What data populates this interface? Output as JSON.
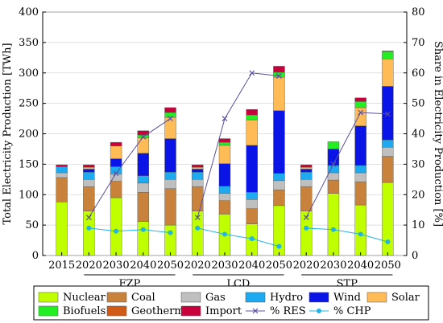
{
  "chart_data": {
    "type": "bar",
    "categories": [
      "2015",
      "2020",
      "2030",
      "2040",
      "2050",
      "2020",
      "2030",
      "2040",
      "2050",
      "2020",
      "2030",
      "2040",
      "2050"
    ],
    "groups": [
      {
        "label": "FZP",
        "start": 1,
        "end": 4
      },
      {
        "label": "LCD",
        "start": 5,
        "end": 8
      },
      {
        "label": "STP",
        "start": 9,
        "end": 12
      }
    ],
    "ylabel": "Total Electricity Production [TWh]",
    "ylabel_right": "Share in Electricity Production [%]",
    "ylim": [
      0,
      400
    ],
    "ylim_right": [
      0,
      80
    ],
    "yticks": [
      0,
      50,
      100,
      150,
      200,
      250,
      300,
      350,
      400
    ],
    "yticks_right": [
      0,
      10,
      20,
      30,
      40,
      50,
      60,
      70,
      80
    ],
    "grid": "horizontal",
    "legend_position": "bottom",
    "series": [
      {
        "name": "Nuclear",
        "color": "#bfff00",
        "values": [
          88,
          73,
          95,
          56,
          50,
          73,
          68,
          52,
          82,
          73,
          102,
          83,
          120
        ]
      },
      {
        "name": "Coal",
        "color": "#c8823c",
        "values": [
          40,
          40,
          27,
          48,
          60,
          40,
          22,
          25,
          26,
          40,
          22,
          38,
          43
        ]
      },
      {
        "name": "Gas",
        "color": "#bfbfbf",
        "values": [
          8,
          12,
          12,
          15,
          15,
          12,
          12,
          15,
          15,
          12,
          12,
          15,
          15
        ]
      },
      {
        "name": "Hydro",
        "color": "#1eaaf0",
        "values": [
          10,
          12,
          12,
          12,
          12,
          12,
          12,
          12,
          12,
          12,
          12,
          12,
          12
        ]
      },
      {
        "name": "Wind",
        "color": "#0a14e6",
        "values": [
          0,
          5,
          13,
          37,
          55,
          5,
          37,
          77,
          103,
          5,
          27,
          65,
          88
        ]
      },
      {
        "name": "Solar",
        "color": "#ffbb55",
        "values": [
          0,
          3,
          21,
          25,
          35,
          3,
          30,
          42,
          55,
          3,
          0,
          30,
          45
        ]
      },
      {
        "name": "Biofuels",
        "color": "#22ee22",
        "values": [
          0,
          0,
          0,
          5,
          8,
          0,
          5,
          8,
          8,
          0,
          12,
          10,
          12
        ]
      },
      {
        "name": "Geothermal",
        "color": "#d15a16",
        "values": [
          0,
          0,
          0,
          0,
          0,
          0,
          0,
          0,
          0,
          0,
          0,
          0,
          0
        ]
      },
      {
        "name": "Import",
        "color": "#c8003c",
        "values": [
          3,
          4,
          6,
          7,
          8,
          4,
          6,
          9,
          10,
          4,
          0,
          6,
          1
        ]
      }
    ],
    "line_series": [
      {
        "name": "% RES",
        "color": "#5a50a0",
        "marker": "x",
        "axis": "right",
        "values": [
          null,
          12.5,
          27,
          39,
          45,
          12.5,
          45,
          60,
          59,
          12.5,
          30,
          47,
          46.5
        ]
      },
      {
        "name": "% CHP",
        "color": "#22b4e6",
        "marker": "o",
        "axis": "right",
        "values": [
          null,
          9,
          8,
          8.5,
          7.5,
          9,
          7,
          5.5,
          3,
          9,
          8.5,
          7,
          4.5
        ]
      }
    ]
  }
}
